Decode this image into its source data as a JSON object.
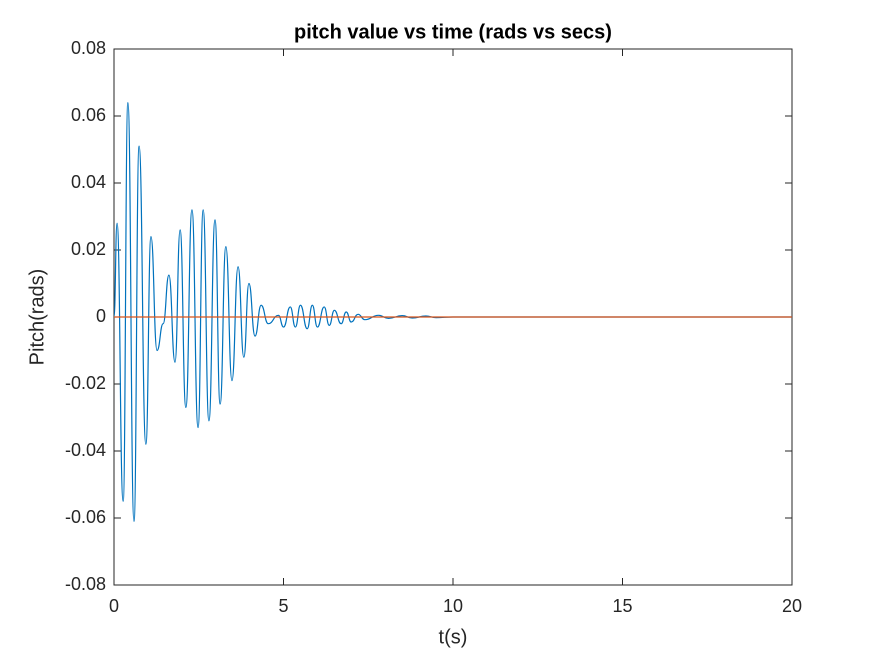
{
  "chart_data": {
    "type": "line",
    "title": "pitch value vs time (rads vs secs)",
    "x_label": "t(s)",
    "y_label": "Pitch(rads)",
    "xlim": [
      0,
      20
    ],
    "xticks": [
      0,
      5,
      10,
      15,
      20
    ],
    "ylim": [
      -0.08,
      0.08
    ],
    "yticks": [
      -0.08,
      -0.06,
      -0.04,
      -0.02,
      0,
      0.02,
      0.04,
      0.06,
      0.08
    ],
    "series": [
      {
        "color": "#0072bd",
        "x": [
          0,
          0.09,
          0.27,
          0.41,
          0.59,
          0.74,
          0.94,
          1.09,
          1.27,
          1.45,
          1.62,
          1.8,
          1.95,
          2.12,
          2.3,
          2.48,
          2.63,
          2.8,
          2.98,
          3.13,
          3.3,
          3.48,
          3.66,
          3.83,
          3.98,
          4.16,
          4.34,
          4.55,
          4.85,
          5.0,
          5.2,
          5.35,
          5.5,
          5.7,
          5.85,
          6.0,
          6.2,
          6.35,
          6.5,
          6.7,
          6.85,
          7.0,
          7.2,
          7.4,
          7.8,
          8.1,
          8.5,
          8.8,
          9.2,
          9.5,
          10,
          20
        ],
        "values": [
          0,
          0.028,
          -0.055,
          0.064,
          -0.061,
          0.051,
          -0.038,
          0.024,
          -0.01,
          -0.002,
          0.0125,
          -0.0135,
          0.026,
          -0.027,
          0.032,
          -0.033,
          0.032,
          -0.031,
          0.029,
          -0.026,
          0.021,
          -0.019,
          0.015,
          -0.012,
          0.01,
          -0.0057,
          0.0035,
          -0.002,
          0.0005,
          -0.003,
          0.003,
          -0.003,
          0.0035,
          -0.0035,
          0.0035,
          -0.003,
          0.003,
          -0.0025,
          0.002,
          -0.002,
          0.0015,
          -0.0015,
          0.0008,
          -0.0008,
          0.0005,
          -0.0004,
          0.0004,
          -0.0003,
          0.0003,
          -0.0002,
          0,
          0
        ]
      },
      {
        "color": "#d95319",
        "x": [
          0,
          20
        ],
        "values": [
          0,
          0
        ]
      }
    ]
  }
}
